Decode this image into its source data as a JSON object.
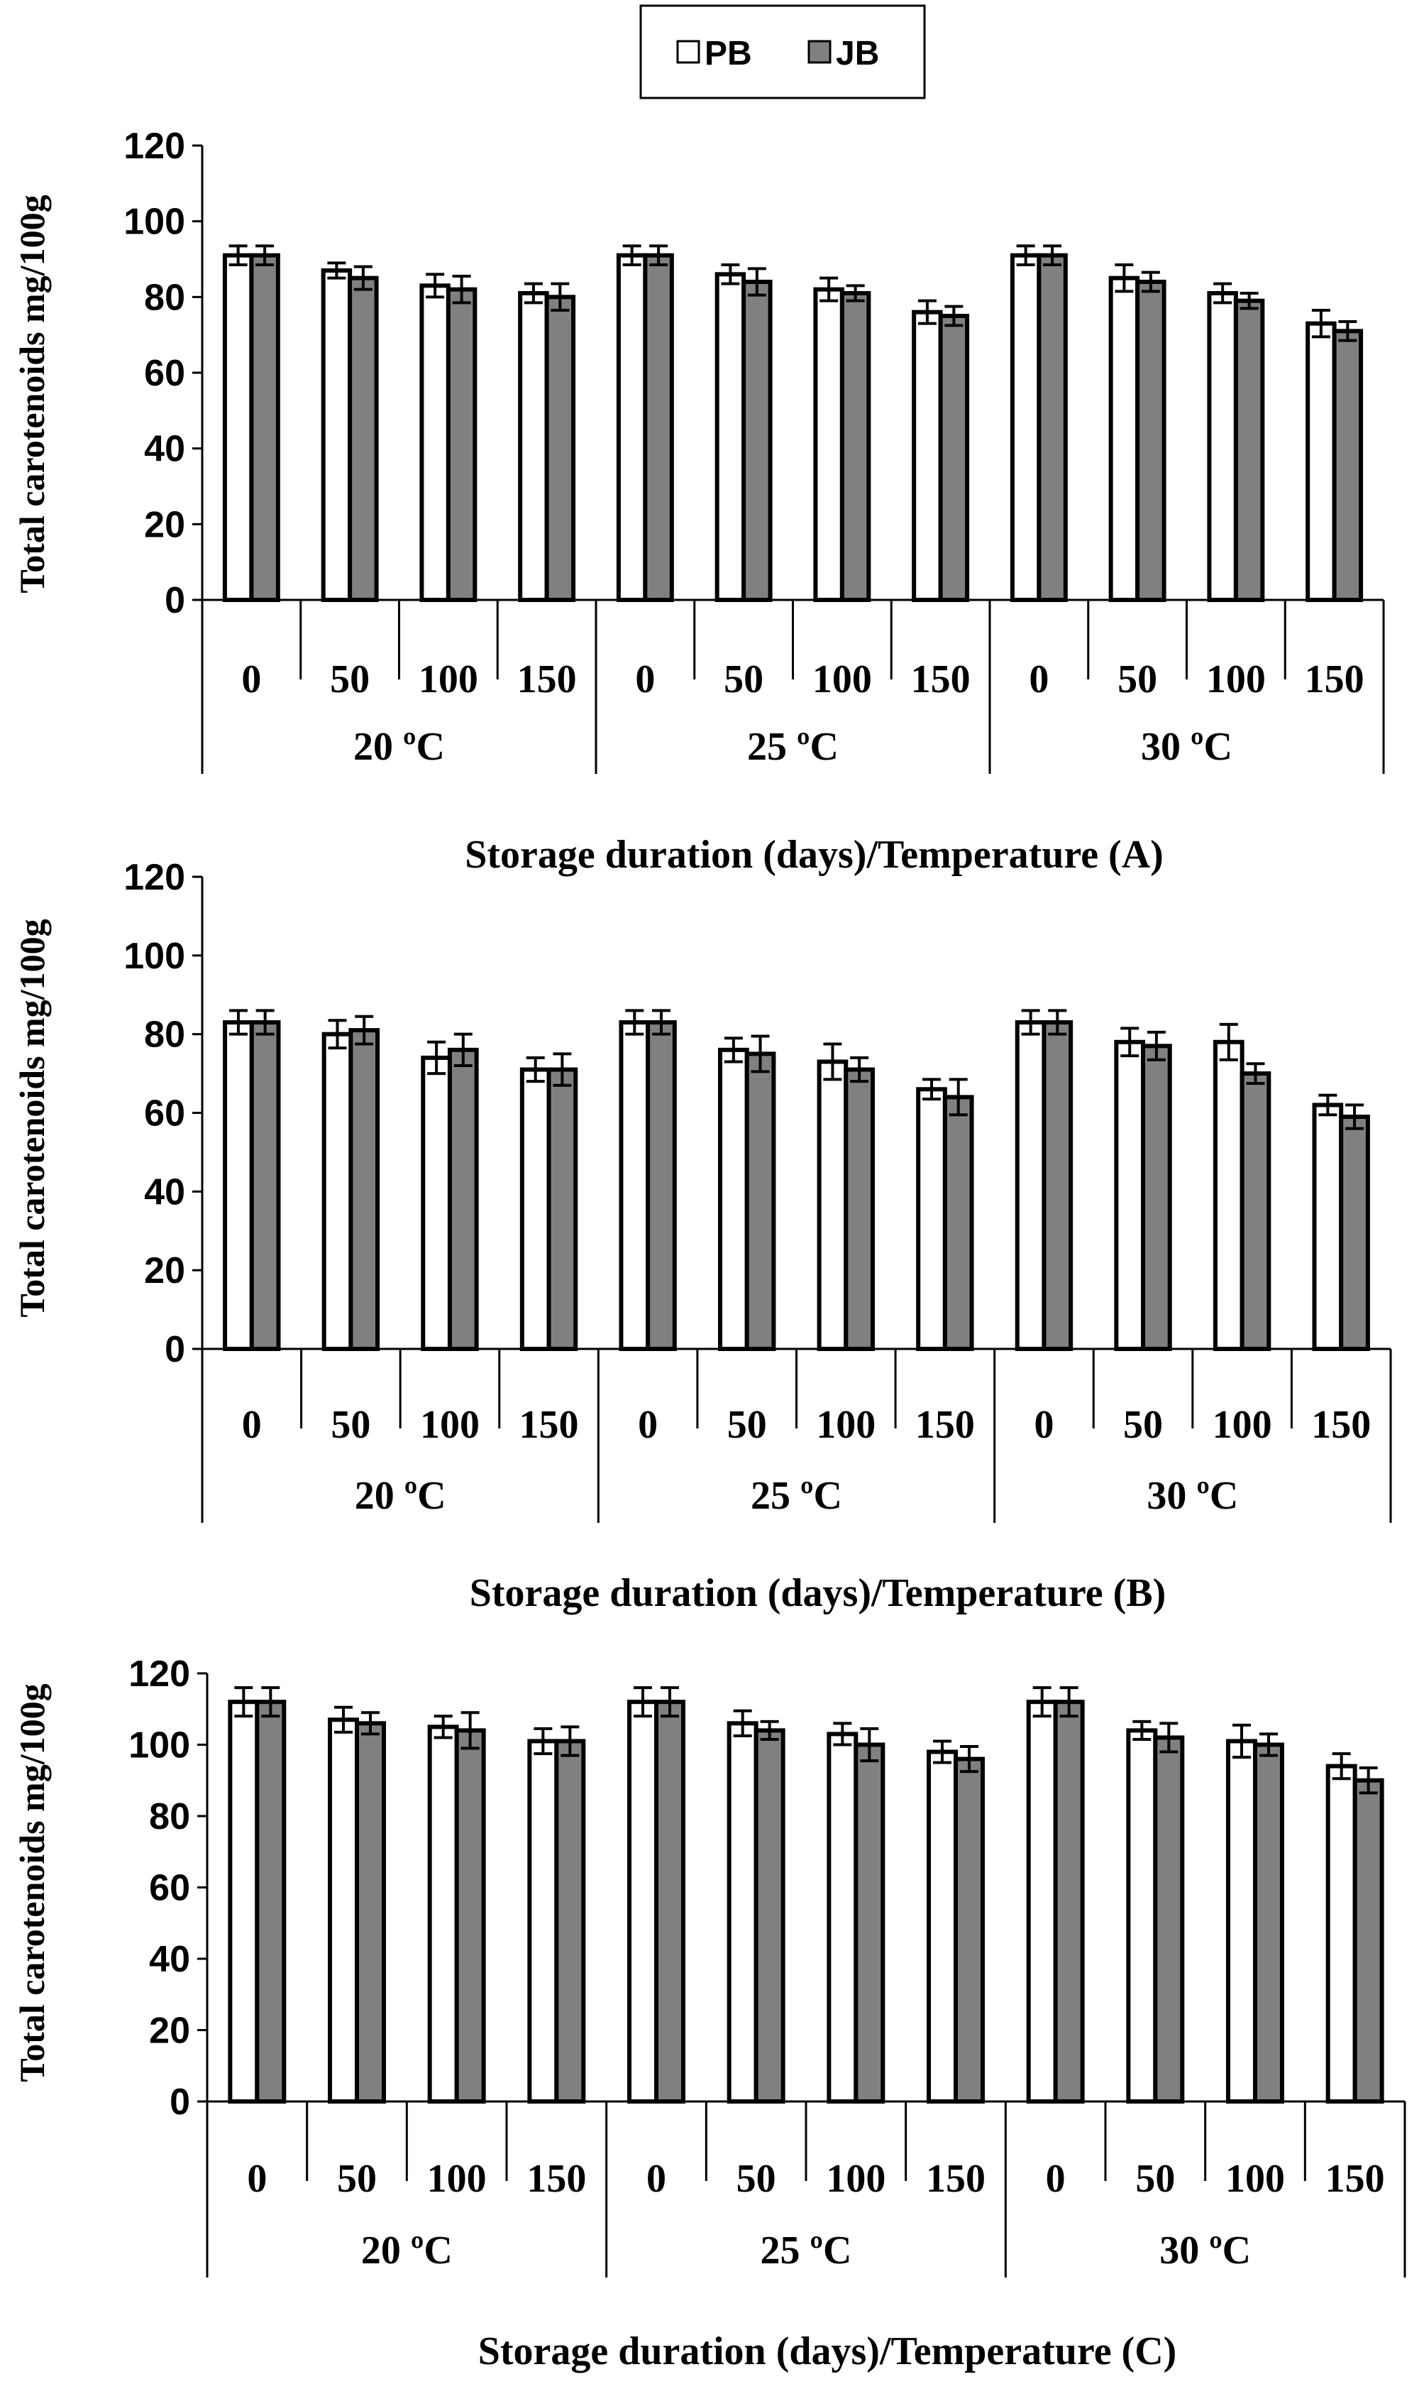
{
  "legend": {
    "items": [
      {
        "label": "PB",
        "color": "#ffffff"
      },
      {
        "label": "JB",
        "color": "#808080"
      }
    ]
  },
  "chart_data": [
    {
      "type": "bar",
      "panel": "A",
      "title": "",
      "xlabel": "Storage duration (days)/Temperature (A)",
      "ylabel": "Total carotenoids mg/100g",
      "ylim": [
        0,
        120
      ],
      "yticks": [
        0,
        20,
        40,
        60,
        80,
        100,
        120
      ],
      "categories": [
        "0",
        "50",
        "100",
        "150",
        "0",
        "50",
        "100",
        "150",
        "0",
        "50",
        "100",
        "150"
      ],
      "groups": [
        {
          "label": "20 ºC",
          "start": 0,
          "end": 4
        },
        {
          "label": "25 ºC",
          "start": 4,
          "end": 8
        },
        {
          "label": "30 ºC",
          "start": 8,
          "end": 12
        }
      ],
      "series": [
        {
          "name": "PB",
          "values": [
            91,
            87,
            83,
            81,
            91,
            86,
            82,
            76,
            91,
            85,
            81,
            73
          ],
          "errors": [
            2.5,
            2,
            3,
            2.5,
            2.5,
            2.5,
            3,
            3,
            2.5,
            3.5,
            2.5,
            3.5
          ]
        },
        {
          "name": "JB",
          "values": [
            91,
            85,
            82,
            80,
            91,
            84,
            81,
            75,
            91,
            84,
            79,
            71
          ],
          "errors": [
            2.5,
            3,
            3.5,
            3.5,
            2.5,
            3.5,
            2,
            2.5,
            2.5,
            2.5,
            2,
            2.5
          ]
        }
      ]
    },
    {
      "type": "bar",
      "panel": "B",
      "title": "",
      "xlabel": "Storage duration (days)/Temperature (B)",
      "ylabel": "Total carotenoids mg/100g",
      "ylim": [
        0,
        120
      ],
      "yticks": [
        0,
        20,
        40,
        60,
        80,
        100,
        120
      ],
      "categories": [
        "0",
        "50",
        "100",
        "150",
        "0",
        "50",
        "100",
        "150",
        "0",
        "50",
        "100",
        "150"
      ],
      "groups": [
        {
          "label": "20 ºC",
          "start": 0,
          "end": 4
        },
        {
          "label": "25 ºC",
          "start": 4,
          "end": 8
        },
        {
          "label": "30 ºC",
          "start": 8,
          "end": 12
        }
      ],
      "series": [
        {
          "name": "PB",
          "values": [
            83,
            80,
            74,
            71,
            83,
            76,
            73,
            66,
            83,
            78,
            78,
            62
          ],
          "errors": [
            3,
            3.5,
            4,
            3,
            3,
            3,
            4.5,
            2.5,
            3,
            3.5,
            4.5,
            2.5
          ]
        },
        {
          "name": "JB",
          "values": [
            83,
            81,
            76,
            71,
            83,
            75,
            71,
            64,
            83,
            77,
            70,
            59
          ],
          "errors": [
            3,
            3.5,
            4,
            4,
            3,
            4.5,
            3,
            4.5,
            3,
            3.5,
            2.5,
            3
          ]
        }
      ]
    },
    {
      "type": "bar",
      "panel": "C",
      "title": "",
      "xlabel": "Storage duration (days)/Temperature (C)",
      "ylabel": "Total carotenoids mg/100g",
      "ylim": [
        0,
        120
      ],
      "yticks": [
        0,
        20,
        40,
        60,
        80,
        100,
        120
      ],
      "categories": [
        "0",
        "50",
        "100",
        "150",
        "0",
        "50",
        "100",
        "150",
        "0",
        "50",
        "100",
        "150"
      ],
      "groups": [
        {
          "label": "20 ºC",
          "start": 0,
          "end": 4
        },
        {
          "label": "25 ºC",
          "start": 4,
          "end": 8
        },
        {
          "label": "30 ºC",
          "start": 8,
          "end": 12
        }
      ],
      "series": [
        {
          "name": "PB",
          "values": [
            112,
            107,
            105,
            101,
            112,
            106,
            103,
            98,
            112,
            104,
            101,
            94
          ],
          "errors": [
            4,
            3.5,
            3,
            3.5,
            4,
            3.5,
            3,
            3,
            4,
            2.5,
            4.5,
            3.5
          ]
        },
        {
          "name": "JB",
          "values": [
            112,
            106,
            104,
            101,
            112,
            104,
            100,
            96,
            112,
            102,
            100,
            90
          ],
          "errors": [
            4,
            3,
            5,
            4,
            4,
            2.5,
            4.5,
            3.5,
            4,
            4,
            3,
            3.5
          ]
        }
      ]
    }
  ]
}
